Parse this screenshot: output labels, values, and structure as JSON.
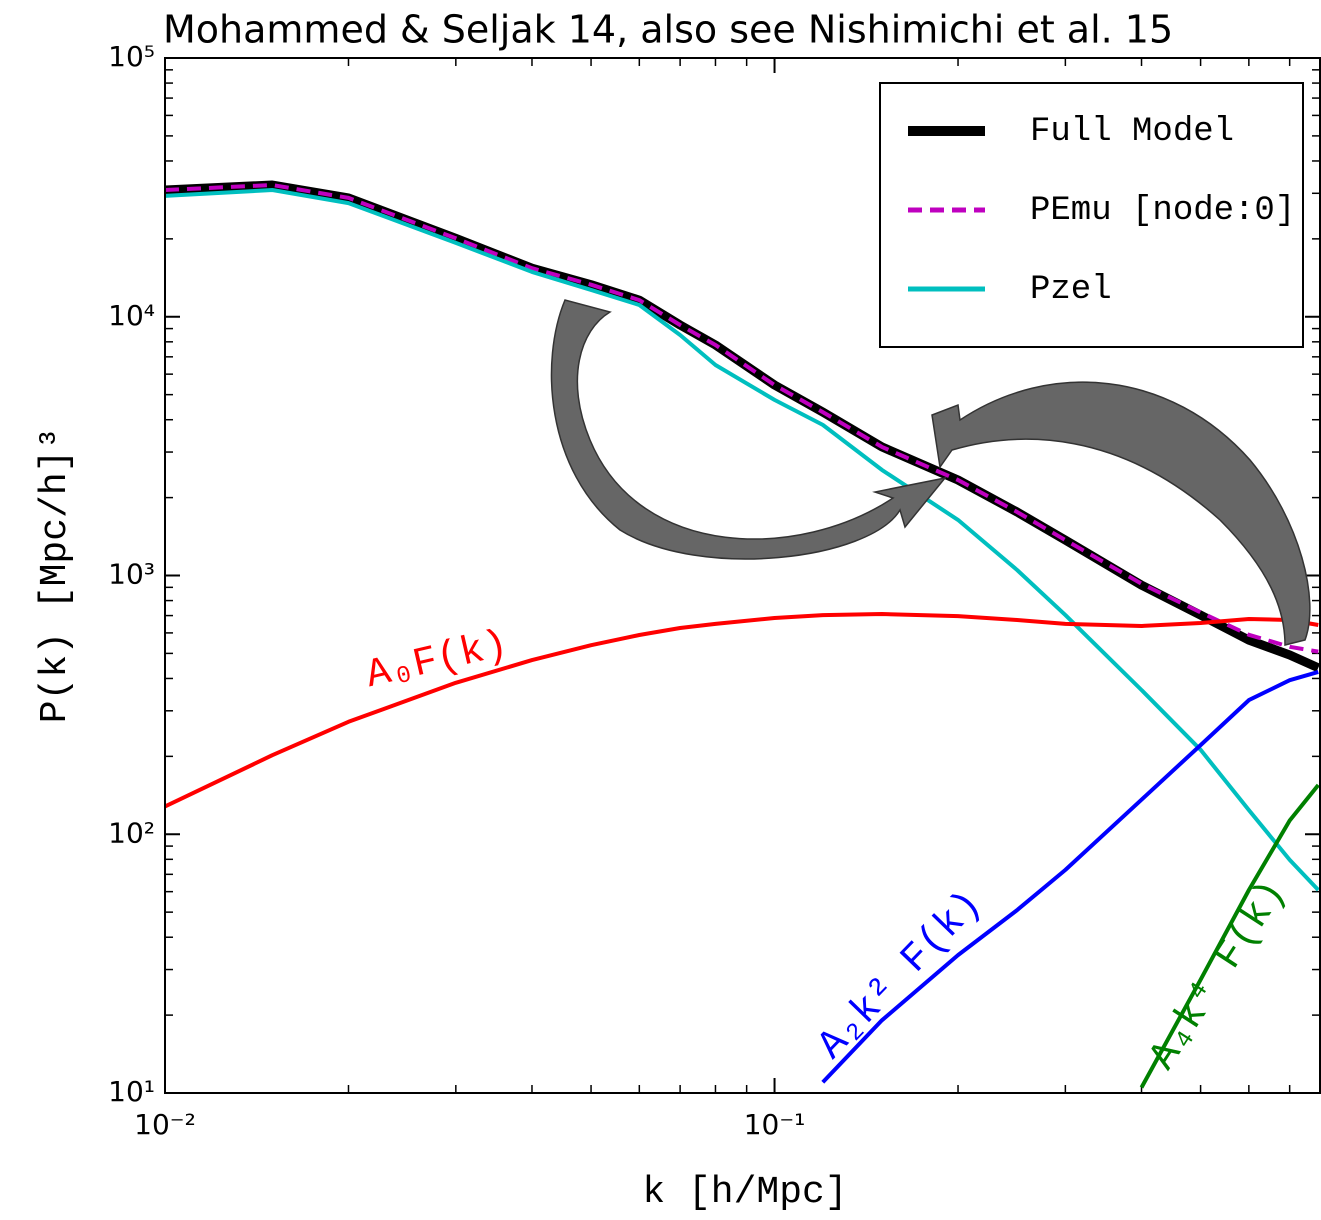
{
  "chart_data": {
    "type": "line",
    "title": "Mohammed & Seljak 14, also see Nishimichi et al. 15",
    "x_label": "k [h/Mpc]",
    "y_label": "P(k) [Mpc/h]³",
    "log_x": true,
    "log_y": true,
    "xlim": [
      0.01,
      0.785
    ],
    "ylim": [
      10,
      100000
    ],
    "xticks": [
      {
        "value": 0.01,
        "label": "10⁻²"
      },
      {
        "value": 0.1,
        "label": "10⁻¹"
      }
    ],
    "yticks": [
      {
        "value": 10,
        "label": "10¹"
      },
      {
        "value": 100,
        "label": "10²"
      },
      {
        "value": 1000,
        "label": "10³"
      },
      {
        "value": 10000,
        "label": "10⁴"
      },
      {
        "value": 100000,
        "label": "10⁵"
      }
    ],
    "legend": "upper right",
    "x": [
      0.01,
      0.015,
      0.02,
      0.03,
      0.04,
      0.05,
      0.06,
      0.07,
      0.08,
      0.1,
      0.12,
      0.15,
      0.2,
      0.25,
      0.3,
      0.4,
      0.5,
      0.6,
      0.7,
      0.78
    ],
    "series": [
      {
        "name": "Full Model",
        "color": "#000000",
        "width": 9,
        "dashed": false,
        "in_legend": true,
        "values": [
          30900,
          32300,
          28800,
          20100,
          15400,
          13300,
          11600,
          9290,
          7780,
          5450,
          4280,
          3140,
          2340,
          1760,
          1370,
          918,
          703,
          563,
          493,
          440
        ]
      },
      {
        "name": "PEmu [node:0]",
        "color": "#bf00bf",
        "width": 4,
        "dashed": true,
        "in_legend": true,
        "values": [
          30900,
          32300,
          28800,
          20100,
          15400,
          13300,
          11600,
          9290,
          7780,
          5450,
          4280,
          3140,
          2340,
          1760,
          1370,
          930,
          720,
          590,
          530,
          508
        ]
      },
      {
        "name": "Pzel",
        "color": "#00bfbf",
        "width": 4,
        "dashed": false,
        "in_legend": true,
        "values": [
          29300,
          30900,
          27500,
          19300,
          14900,
          12700,
          11100,
          8500,
          6510,
          4770,
          3820,
          2560,
          1640,
          1050,
          703,
          361,
          212,
          124,
          79.6,
          60.9
        ]
      },
      {
        "name": "A₀F(k)",
        "color": "#ff0000",
        "width": 4,
        "dashed": false,
        "in_legend": false,
        "values": [
          128,
          202,
          272,
          385,
          471,
          538,
          589,
          627,
          650,
          685,
          703,
          710,
          697,
          673,
          650,
          638,
          655,
          679,
          673,
          644
        ]
      },
      {
        "name": "A₂k² F(k)",
        "color": "#0000ff",
        "width": 4,
        "dashed": false,
        "in_legend": false,
        "values": [
          null,
          null,
          null,
          null,
          null,
          null,
          null,
          null,
          null,
          null,
          11.0,
          19.1,
          34.1,
          50.9,
          72.8,
          136,
          221,
          330,
          394,
          424
        ]
      },
      {
        "name": "A₄k⁴ F(k)",
        "color": "#008000",
        "width": 4,
        "dashed": false,
        "in_legend": false,
        "values": [
          null,
          null,
          null,
          null,
          null,
          null,
          null,
          null,
          null,
          null,
          null,
          null,
          null,
          null,
          null,
          10.5,
          27.4,
          60.9,
          113,
          155
        ]
      }
    ]
  }
}
